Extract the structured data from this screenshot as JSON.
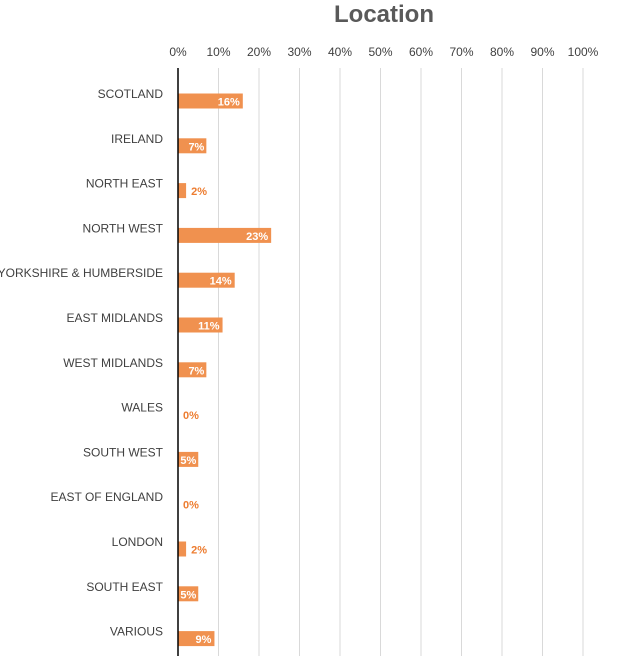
{
  "chart_data": {
    "type": "bar",
    "orientation": "horizontal",
    "title": "Location",
    "xlabel": "",
    "ylabel": "",
    "categories": [
      "SCOTLAND",
      "IRELAND",
      "NORTH EAST",
      "NORTH WEST",
      "YORKSHIRE & HUMBERSIDE",
      "EAST MIDLANDS",
      "WEST MIDLANDS",
      "WALES",
      "SOUTH WEST",
      "EAST OF ENGLAND",
      "LONDON",
      "SOUTH EAST",
      "VARIOUS"
    ],
    "values": [
      16,
      7,
      2,
      23,
      14,
      11,
      7,
      0,
      5,
      0,
      2,
      5,
      9
    ],
    "value_labels": [
      "16%",
      "7%",
      "2%",
      "23%",
      "14%",
      "11%",
      "7%",
      "0%",
      "5%",
      "0%",
      "2%",
      "5%",
      "9%"
    ],
    "xlim": [
      0,
      100
    ],
    "x_ticks": [
      0,
      10,
      20,
      30,
      40,
      50,
      60,
      70,
      80,
      90,
      100
    ],
    "x_tick_labels": [
      "0%",
      "10%",
      "20%",
      "30%",
      "40%",
      "50%",
      "60%",
      "70%",
      "80%",
      "90%",
      "100%"
    ],
    "x_axis_position": "top",
    "grid": true,
    "legend": "none",
    "colors": {
      "bar": "#f0914f",
      "label_inside": "#ffffff",
      "label_outside": "#ed7d31",
      "grid": "#d9d9d9",
      "axis": "#000000",
      "text": "#404040",
      "title": "#595959"
    }
  }
}
